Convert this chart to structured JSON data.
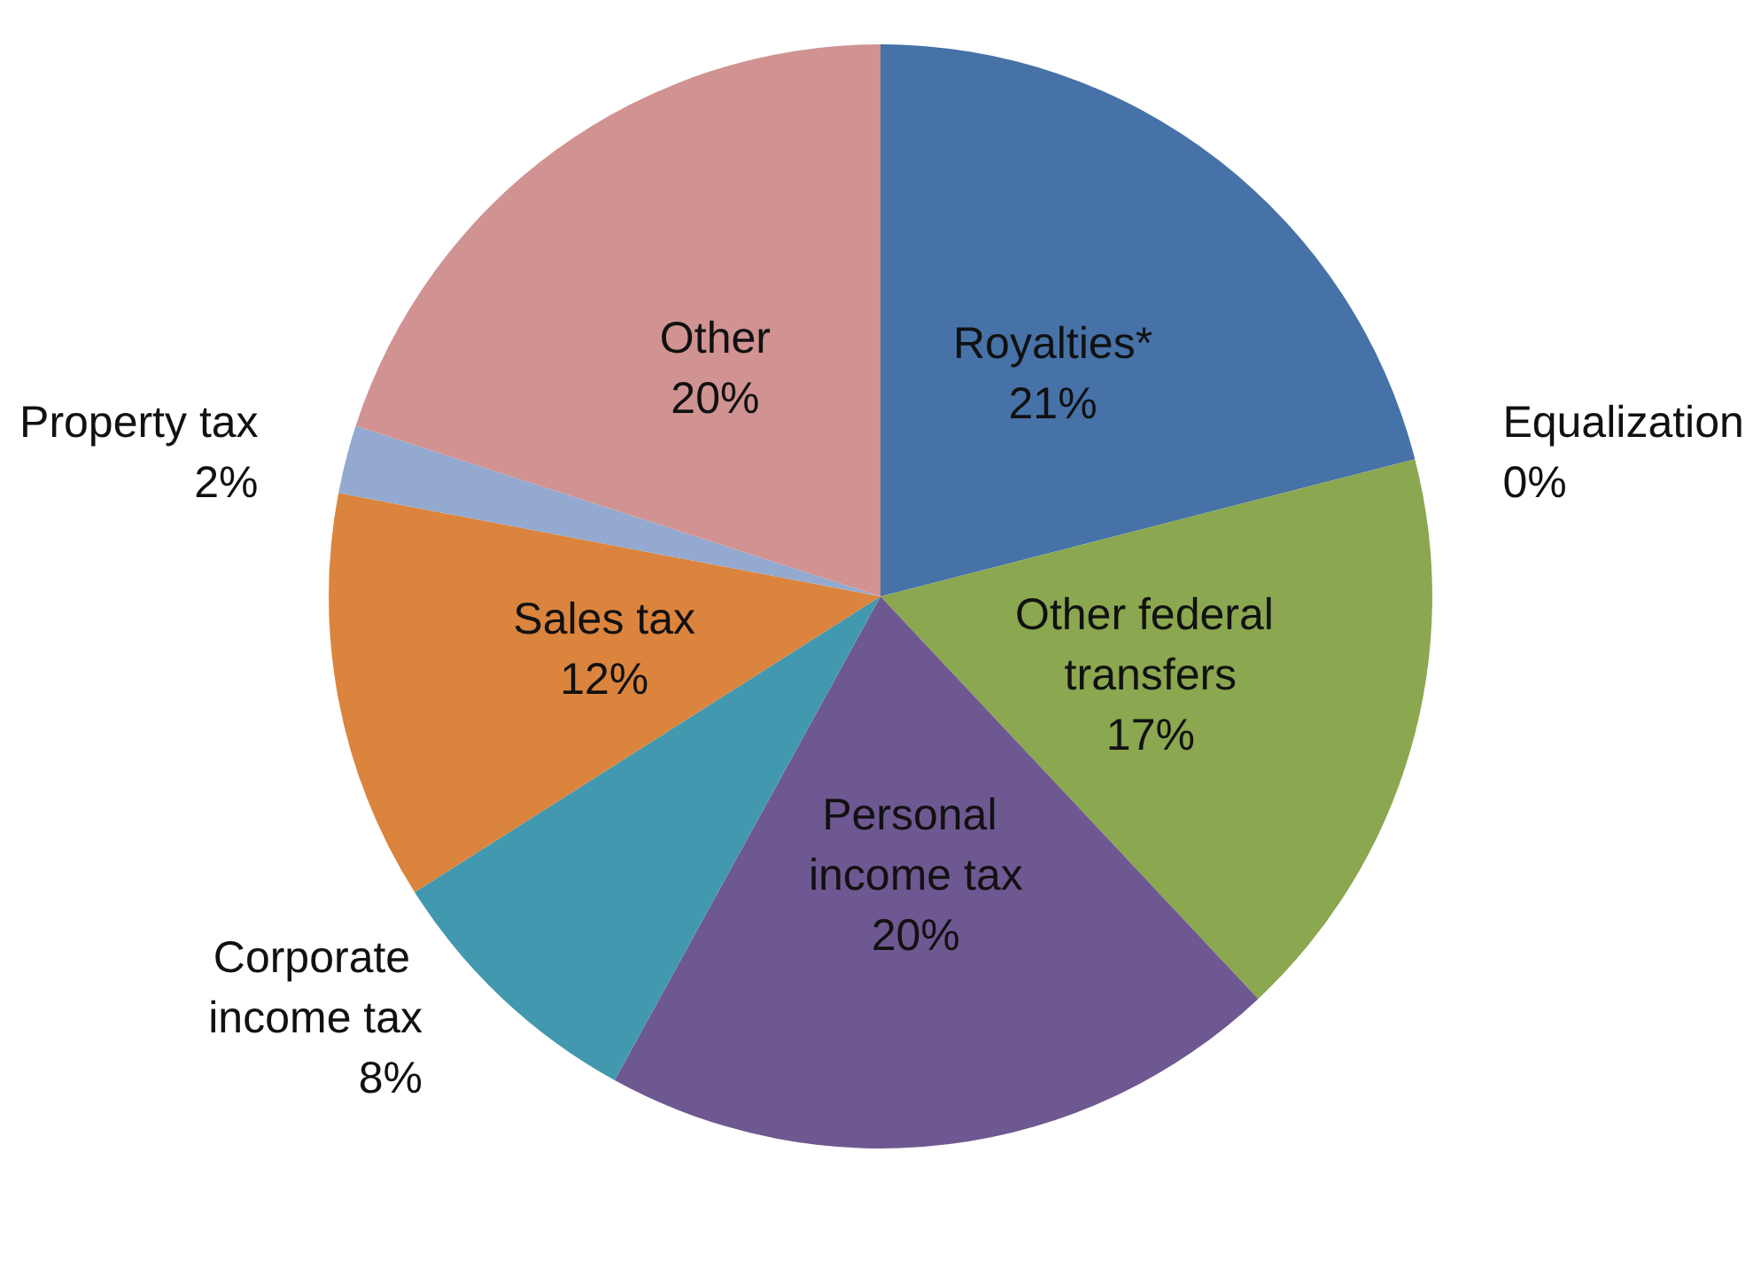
{
  "chart_data": {
    "type": "pie",
    "categories": [
      "Royalties*",
      "Equalization",
      "Other federal transfers",
      "Personal income tax",
      "Corporate income tax",
      "Sales tax",
      "Property tax",
      "Other"
    ],
    "values": [
      21,
      0,
      17,
      20,
      8,
      12,
      2,
      20
    ],
    "colors": [
      "#4672a8",
      "#aa4643",
      "#8ba74f",
      "#6e5891",
      "#4298ae",
      "#db843d",
      "#93a9cf",
      "#d09392"
    ],
    "value_labels": [
      "21%",
      "0%",
      "17%",
      "20%",
      "8%",
      "12%",
      "2%",
      "20%"
    ],
    "legend": false
  }
}
